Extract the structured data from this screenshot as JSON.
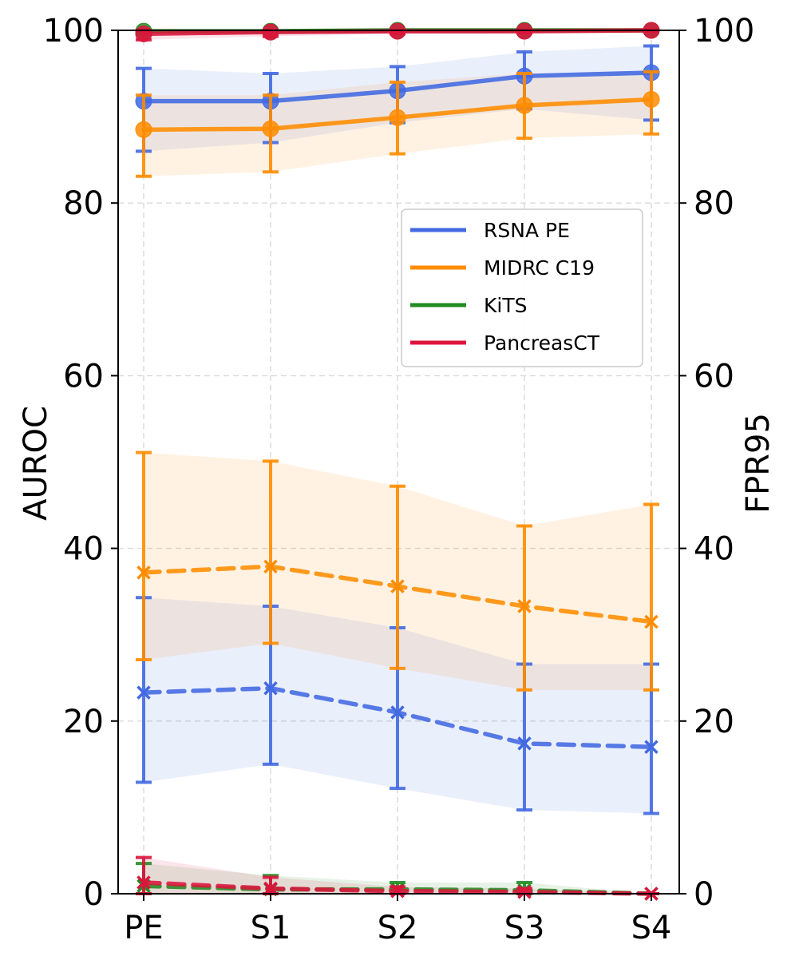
{
  "chart_data": {
    "type": "line",
    "categories": [
      "PE",
      "S1",
      "S2",
      "S3",
      "S4"
    ],
    "left_axis": {
      "label": "AUROC",
      "range": [
        0,
        100
      ],
      "ticks": [
        0,
        20,
        40,
        60,
        80,
        100
      ]
    },
    "right_axis": {
      "label": "FPR95",
      "range": [
        0,
        100
      ],
      "ticks": [
        0,
        20,
        40,
        60,
        80,
        100
      ]
    },
    "grid": true,
    "legend_position": "center-right",
    "legend": [
      {
        "name": "RSNA PE",
        "color": "#4169e1"
      },
      {
        "name": "MIDRC C19",
        "color": "#ff8c00"
      },
      {
        "name": "KiTS",
        "color": "#228b22"
      },
      {
        "name": "PancreasCT",
        "color": "#dc143c"
      }
    ],
    "series": [
      {
        "name": "RSNA PE",
        "metric": "AUROC",
        "style": "solid",
        "marker": "circle",
        "color": "#4169e1",
        "values": [
          91.8,
          91.8,
          93.0,
          94.7,
          95.1
        ],
        "band_low": [
          86.0,
          87.0,
          89.3,
          90.9,
          89.6
        ],
        "band_high": [
          95.6,
          95.0,
          95.8,
          97.5,
          98.2
        ]
      },
      {
        "name": "MIDRC C19",
        "metric": "AUROC",
        "style": "solid",
        "marker": "circle",
        "color": "#ff8c00",
        "values": [
          88.5,
          88.6,
          89.9,
          91.3,
          92.0
        ],
        "band_low": [
          83.1,
          83.6,
          85.7,
          87.5,
          88.0
        ],
        "band_high": [
          92.5,
          92.5,
          94.0,
          95.0,
          95.2
        ]
      },
      {
        "name": "KiTS",
        "metric": "AUROC",
        "style": "solid",
        "marker": "circle",
        "color": "#228b22",
        "values": [
          99.9,
          99.9,
          100.0,
          100.0,
          100.0
        ],
        "band_low": [
          99.6,
          99.6,
          99.8,
          99.9,
          100.0
        ],
        "band_high": [
          100.0,
          100.0,
          100.0,
          100.0,
          100.0
        ]
      },
      {
        "name": "PancreasCT",
        "metric": "AUROC",
        "style": "solid",
        "marker": "circle",
        "color": "#dc143c",
        "values": [
          99.6,
          99.8,
          99.9,
          99.9,
          100.0
        ],
        "band_low": [
          98.9,
          99.3,
          99.6,
          99.7,
          99.9
        ],
        "band_high": [
          100.0,
          100.0,
          100.0,
          100.0,
          100.0
        ]
      },
      {
        "name": "RSNA PE",
        "metric": "FPR95",
        "style": "dashed",
        "marker": "x",
        "color": "#4169e1",
        "values": [
          23.3,
          23.8,
          21.0,
          17.4,
          17.0
        ],
        "band_low": [
          12.9,
          15.0,
          12.2,
          9.7,
          9.3
        ],
        "band_high": [
          34.3,
          33.3,
          30.8,
          26.6,
          26.6
        ]
      },
      {
        "name": "MIDRC C19",
        "metric": "FPR95",
        "style": "dashed",
        "marker": "x",
        "color": "#ff8c00",
        "values": [
          37.2,
          37.9,
          35.6,
          33.3,
          31.5
        ],
        "band_low": [
          27.1,
          29.0,
          26.1,
          23.6,
          23.6
        ],
        "band_high": [
          51.1,
          50.1,
          47.2,
          42.6,
          45.1
        ]
      },
      {
        "name": "KiTS",
        "metric": "FPR95",
        "style": "dashed",
        "marker": "x",
        "color": "#228b22",
        "values": [
          0.9,
          0.5,
          0.5,
          0.4,
          0.0
        ],
        "band_low": [
          0.0,
          0.0,
          0.0,
          0.0,
          0.0
        ],
        "band_high": [
          3.5,
          2.1,
          1.3,
          1.3,
          0.0
        ]
      },
      {
        "name": "PancreasCT",
        "metric": "FPR95",
        "style": "dashed",
        "marker": "x",
        "color": "#dc143c",
        "values": [
          1.3,
          0.6,
          0.3,
          0.2,
          0.0
        ],
        "band_low": [
          0.0,
          0.0,
          0.0,
          0.0,
          0.0
        ],
        "band_high": [
          4.2,
          1.9,
          0.8,
          0.6,
          0.0
        ]
      }
    ]
  }
}
